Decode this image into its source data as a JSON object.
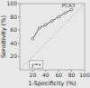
{
  "chart_data": {
    "type": "line",
    "xlabel": "1-Specificity (%)",
    "ylabel": "Sensitivity (%)",
    "xlim": [
      0,
      100
    ],
    "ylim": [
      0,
      100
    ],
    "xticks": [
      20,
      40,
      60,
      80,
      100
    ],
    "yticks": [
      20,
      40,
      60,
      80,
      100
    ],
    "series": [
      {
        "name": "y=x",
        "x": [
          0,
          100
        ],
        "values": [
          0,
          100
        ],
        "color": "#aaaaaa",
        "line_style": "dashed"
      },
      {
        "x": [
          20,
          30,
          40,
          50,
          60,
          70,
          80
        ],
        "values": [
          47,
          63,
          68,
          74,
          80,
          86,
          91
        ],
        "color": "#555555",
        "marker": "circle"
      }
    ],
    "annotations": [
      {
        "text": "PCA3",
        "x": 65,
        "y": 94
      }
    ],
    "legend": "lower left"
  }
}
